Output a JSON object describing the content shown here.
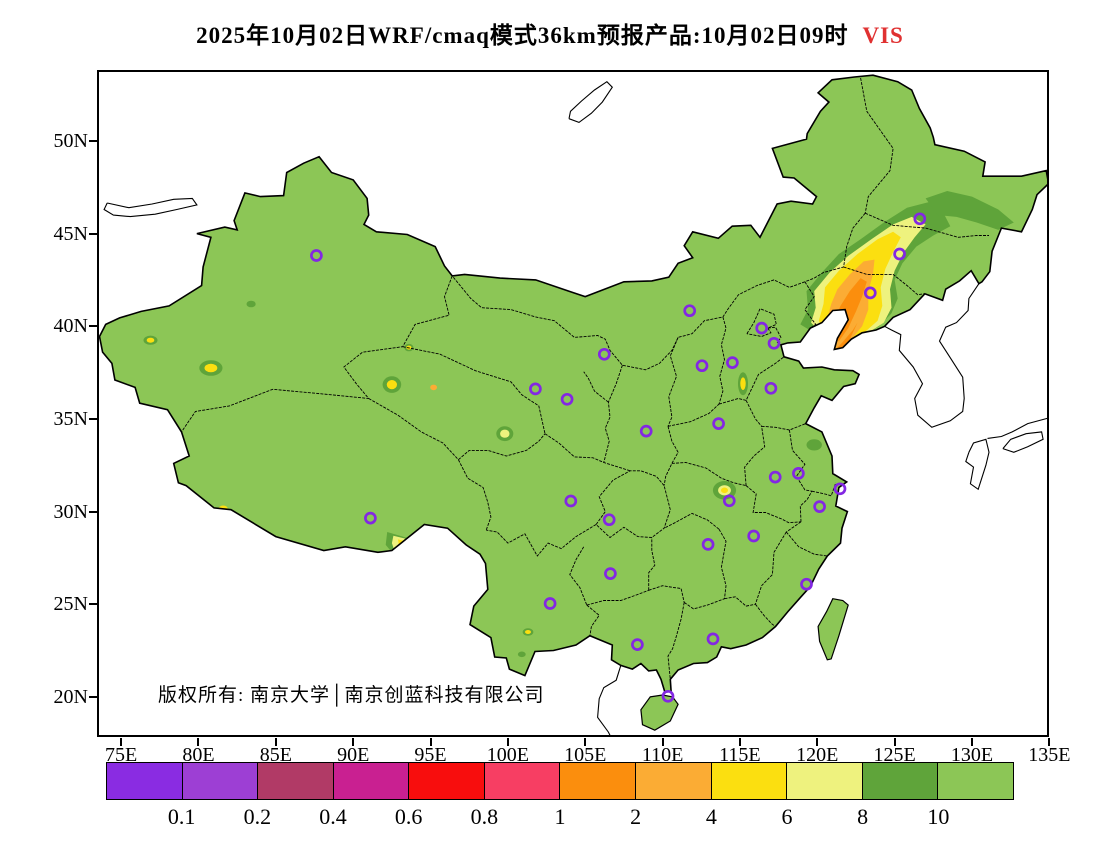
{
  "title": {
    "main": "2025年10月02日WRF/cmaq模式36km预报产品:10月02日09时",
    "highlight": "VIS",
    "highlight_color": "#e03131"
  },
  "copyright": "版权所有: 南京大学│南京创蓝科技有限公司",
  "axis": {
    "lat_labels": [
      "50N",
      "45N",
      "40N",
      "35N",
      "30N",
      "25N",
      "20N"
    ],
    "lon_labels": [
      "75E",
      "80E",
      "85E",
      "90E",
      "95E",
      "100E",
      "105E",
      "110E",
      "115E",
      "120E",
      "125E",
      "130E",
      "135E"
    ]
  },
  "colorbar": {
    "values": [
      "0.1",
      "0.2",
      "0.4",
      "0.6",
      "0.8",
      "1",
      "2",
      "4",
      "6",
      "8",
      "10"
    ],
    "colors": [
      "#8a2ce2",
      "#9d3fd4",
      "#b13a66",
      "#c92091",
      "#f80d0d",
      "#f73e63",
      "#fb8e0d",
      "#fbac34",
      "#fbdf10",
      "#eef27e",
      "#5fa43a",
      "#8cc656"
    ]
  },
  "map": {
    "land_color": "#8cc656",
    "sea_color": "#ffffff",
    "border_color": "#000000",
    "marker_color": "#8327e3",
    "cities": [
      {
        "name": "Urumqi",
        "lon": 87.62,
        "lat": 43.82
      },
      {
        "name": "Harbin",
        "lon": 126.63,
        "lat": 45.8
      },
      {
        "name": "Changchun",
        "lon": 125.32,
        "lat": 43.9
      },
      {
        "name": "Shenyang",
        "lon": 123.43,
        "lat": 41.8
      },
      {
        "name": "Hohhot",
        "lon": 111.75,
        "lat": 40.84
      },
      {
        "name": "Beijing",
        "lon": 116.41,
        "lat": 39.9
      },
      {
        "name": "Tianjin",
        "lon": 117.2,
        "lat": 39.08
      },
      {
        "name": "Shijiazhuang",
        "lon": 114.51,
        "lat": 38.04
      },
      {
        "name": "Taiyuan",
        "lon": 112.55,
        "lat": 37.87
      },
      {
        "name": "Yinchuan",
        "lon": 106.23,
        "lat": 38.49
      },
      {
        "name": "Xining",
        "lon": 101.78,
        "lat": 36.62
      },
      {
        "name": "Lanzhou",
        "lon": 103.83,
        "lat": 36.06
      },
      {
        "name": "Jinan",
        "lon": 117.0,
        "lat": 36.65
      },
      {
        "name": "Zhengzhou",
        "lon": 113.62,
        "lat": 34.75
      },
      {
        "name": "Xian",
        "lon": 108.94,
        "lat": 34.34
      },
      {
        "name": "Nanjing",
        "lon": 118.78,
        "lat": 32.06
      },
      {
        "name": "Hefei",
        "lon": 117.28,
        "lat": 31.86
      },
      {
        "name": "Shanghai",
        "lon": 121.47,
        "lat": 31.23
      },
      {
        "name": "Hangzhou",
        "lon": 120.15,
        "lat": 30.27
      },
      {
        "name": "Wuhan",
        "lon": 114.31,
        "lat": 30.58
      },
      {
        "name": "Chengdu",
        "lon": 104.07,
        "lat": 30.57
      },
      {
        "name": "Chongqing",
        "lon": 106.55,
        "lat": 29.56
      },
      {
        "name": "Lhasa",
        "lon": 91.11,
        "lat": 29.65
      },
      {
        "name": "Nanchang",
        "lon": 115.89,
        "lat": 28.68
      },
      {
        "name": "Changsha",
        "lon": 112.94,
        "lat": 28.23
      },
      {
        "name": "Guiyang",
        "lon": 106.63,
        "lat": 26.65
      },
      {
        "name": "Fuzhou",
        "lon": 119.3,
        "lat": 26.08
      },
      {
        "name": "Kunming",
        "lon": 102.73,
        "lat": 25.04
      },
      {
        "name": "Guangzhou",
        "lon": 113.26,
        "lat": 23.13
      },
      {
        "name": "Nanning",
        "lon": 108.37,
        "lat": 22.82
      },
      {
        "name": "Haikou",
        "lon": 110.35,
        "lat": 20.03
      }
    ]
  }
}
